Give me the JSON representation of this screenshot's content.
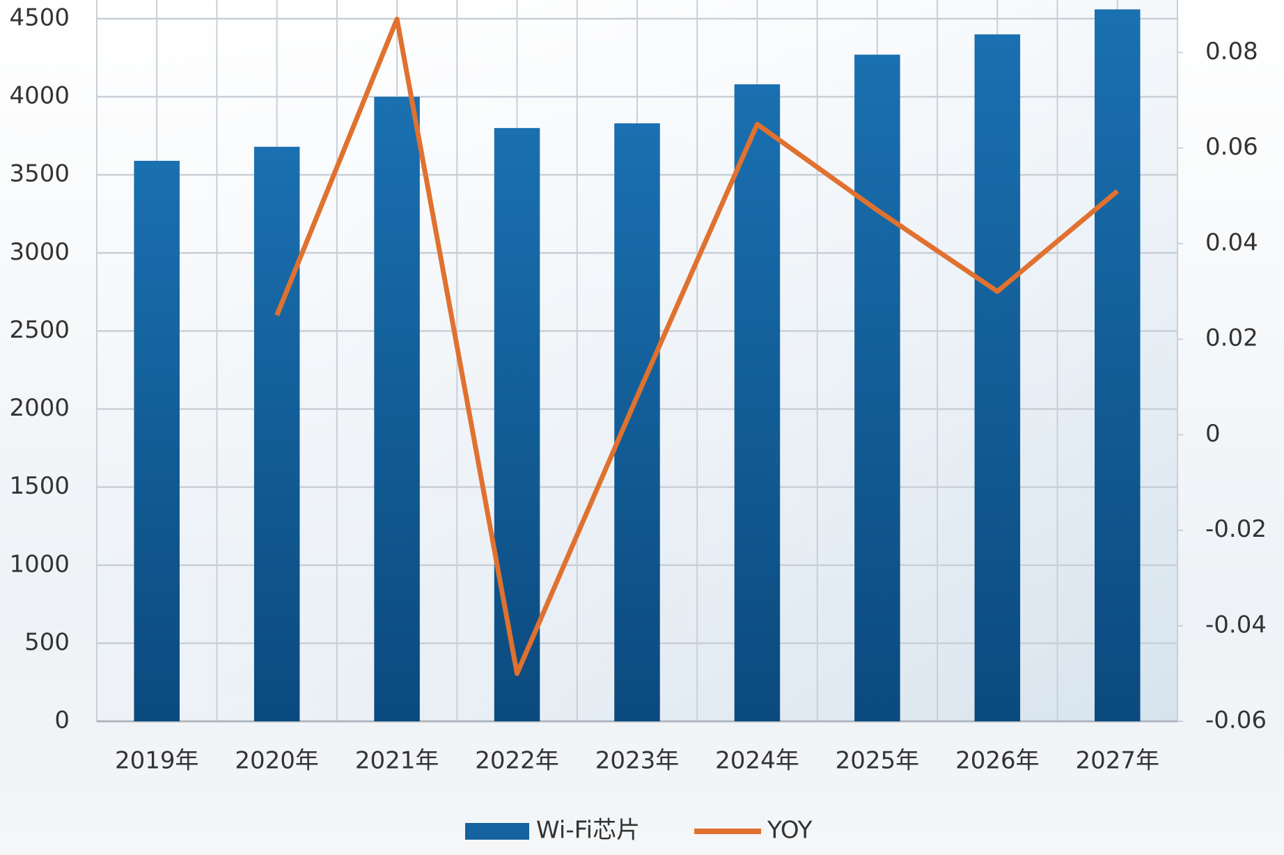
{
  "chart_data": {
    "type": "bar-line",
    "categories": [
      "2019年",
      "2020年",
      "2021年",
      "2022年",
      "2023年",
      "2024年",
      "2025年",
      "2026年",
      "2027年"
    ],
    "series": [
      {
        "name": "Wi-Fi芯片",
        "color": "#15629f",
        "values": [
          3590,
          3680,
          4000,
          3800,
          3830,
          4080,
          4270,
          4400,
          4560
        ]
      },
      {
        "name": "YOY",
        "color": "#e0712f",
        "axis": "y2",
        "values": [
          null,
          0.025,
          0.087,
          -0.05,
          0.008,
          0.065,
          0.047,
          0.03,
          0.051
        ]
      }
    ],
    "ylim": [
      0,
      4620
    ],
    "yticks": [
      0,
      500,
      1000,
      1500,
      2000,
      2500,
      3000,
      3500,
      4000,
      4500
    ],
    "y2lim": [
      -0.06,
      0.091
    ],
    "y2ticks": [
      -0.06,
      -0.04,
      -0.02,
      0,
      0.02,
      0.04,
      0.06,
      0.08
    ],
    "grid": true,
    "legend": "bottom"
  }
}
